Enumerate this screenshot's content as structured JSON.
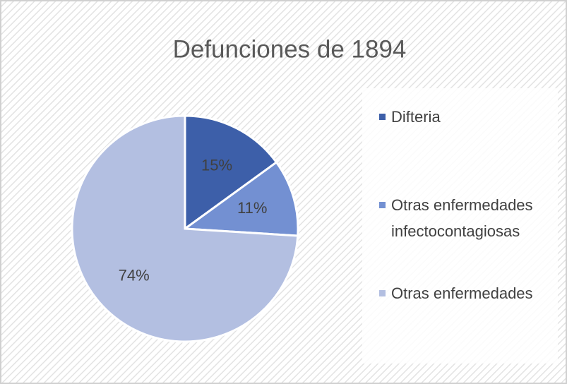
{
  "chart_data": {
    "type": "pie",
    "title": "Defunciones de 1894",
    "categories": [
      "Difteria",
      "Otras enfermedades infectocontagiosas",
      "Otras enfermedades"
    ],
    "values": [
      15,
      11,
      74
    ],
    "value_labels": [
      "15%",
      "11%",
      "74%"
    ],
    "colors": [
      "#3d5fa9",
      "#7390d2",
      "#b3bfe1"
    ],
    "legend": "right"
  }
}
